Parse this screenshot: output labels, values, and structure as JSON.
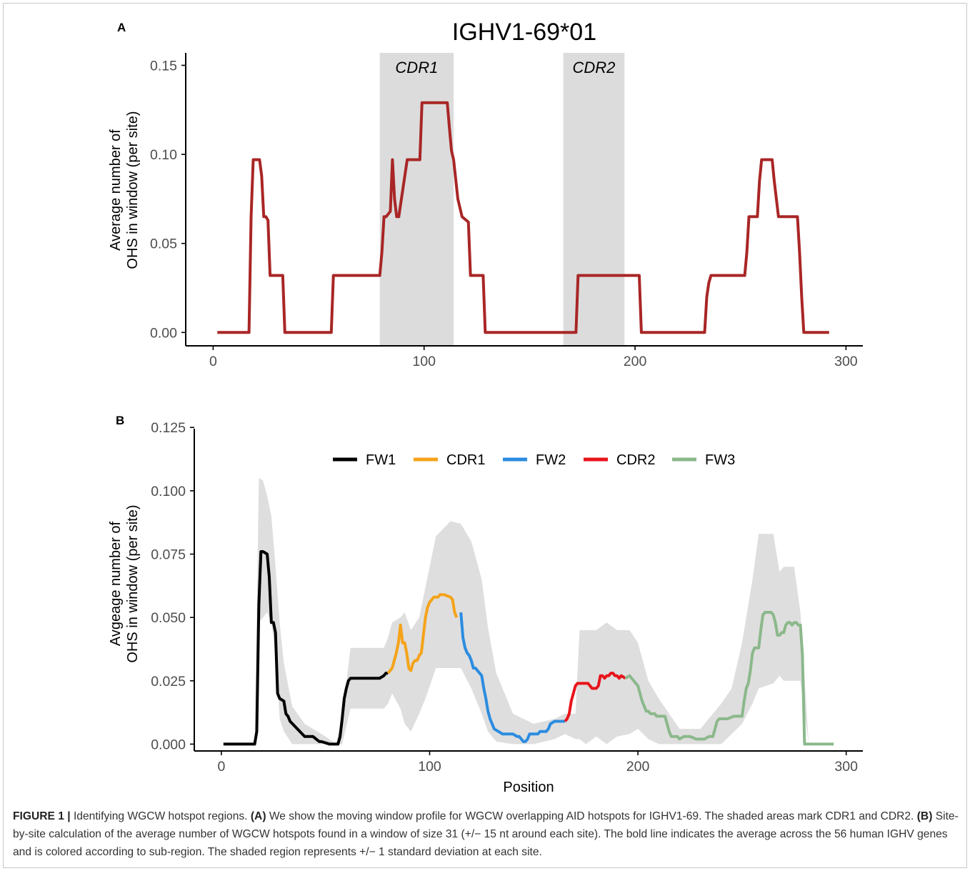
{
  "colors": {
    "panel_a_line": "#a92626",
    "cdr_shade": "#dcdcdc",
    "sd_band": "#dedede",
    "FW1": "#000000",
    "CDR1": "#f5a31a",
    "FW2": "#2b8ce0",
    "CDR2": "#e8141b",
    "FW3": "#8bb88b",
    "axis": "#000000",
    "tick_label": "#4d4d4d"
  },
  "chart_data": [
    {
      "panel_label": "A",
      "type": "line",
      "title": "IGHV1-69*01",
      "xlabel": "",
      "ylabel": [
        "Average number of",
        "OHS in window (per site)"
      ],
      "xlim": [
        -13,
        308
      ],
      "ylim": [
        -0.0075,
        0.157
      ],
      "xticks": [
        0,
        100,
        200,
        300
      ],
      "yticks": [
        0.0,
        0.05,
        0.1,
        0.15
      ],
      "ytick_labels": [
        "0.00",
        "0.05",
        "0.10",
        "0.15"
      ],
      "grid": false,
      "shaded_regions": [
        {
          "label": "CDR1",
          "x": [
            79,
            114
          ]
        },
        {
          "label": "CDR2",
          "x": [
            166,
            195
          ]
        }
      ],
      "series": [
        {
          "x": [
            2,
            17,
            18,
            19,
            22,
            23,
            24,
            25,
            26,
            27,
            33,
            34,
            56,
            57,
            78,
            79,
            80,
            81,
            82,
            84,
            85,
            86,
            87,
            88,
            92,
            98,
            99,
            110,
            111,
            112,
            113,
            114,
            116,
            118,
            121,
            122,
            128,
            129,
            163,
            164,
            172,
            173,
            202,
            203,
            233,
            234,
            235,
            236,
            240,
            252,
            253,
            254,
            256,
            258,
            259,
            260,
            262,
            263,
            265,
            266,
            268,
            277,
            278,
            279,
            280,
            292
          ],
          "y": [
            0.0,
            0.0,
            0.065,
            0.097,
            0.097,
            0.088,
            0.065,
            0.065,
            0.063,
            0.032,
            0.032,
            0.0,
            0.0,
            0.032,
            0.032,
            0.032,
            0.045,
            0.065,
            0.065,
            0.068,
            0.097,
            0.075,
            0.065,
            0.065,
            0.097,
            0.097,
            0.129,
            0.129,
            0.129,
            0.115,
            0.102,
            0.097,
            0.075,
            0.065,
            0.062,
            0.032,
            0.032,
            0.0,
            0.0,
            0.0,
            0.0,
            0.032,
            0.032,
            0.0,
            0.0,
            0.02,
            0.028,
            0.032,
            0.032,
            0.032,
            0.045,
            0.065,
            0.065,
            0.065,
            0.085,
            0.097,
            0.097,
            0.097,
            0.097,
            0.085,
            0.065,
            0.065,
            0.045,
            0.02,
            0.0,
            0.0
          ]
        }
      ]
    },
    {
      "panel_label": "B",
      "type": "line",
      "title": "",
      "xlabel": "Position",
      "ylabel": [
        "Avgeage number of",
        "OHS in window (per site)"
      ],
      "xlim": [
        -13,
        308
      ],
      "ylim": [
        -0.0027,
        0.1245
      ],
      "xticks": [
        0,
        100,
        200,
        300
      ],
      "yticks": [
        0.0,
        0.025,
        0.05,
        0.075,
        0.1,
        0.125
      ],
      "ytick_labels": [
        "0.000",
        "0.025",
        "0.050",
        "0.075",
        "0.100",
        "0.125"
      ],
      "grid": false,
      "legend_position": "top",
      "sd_band": {
        "x": [
          1,
          16,
          18,
          20,
          22,
          24,
          26,
          28,
          30,
          34,
          40,
          50,
          55,
          58,
          62,
          70,
          78,
          80,
          82,
          86,
          88,
          91,
          95,
          98,
          103,
          110,
          115,
          120,
          125,
          128,
          132,
          140,
          150,
          160,
          165,
          170,
          172,
          175,
          180,
          185,
          190,
          196,
          200,
          205,
          210,
          220,
          230,
          240,
          245,
          250,
          255,
          258,
          265,
          268,
          270,
          275,
          278,
          282,
          294
        ],
        "upper": [
          0.0,
          0.0,
          0.105,
          0.104,
          0.098,
          0.09,
          0.07,
          0.048,
          0.032,
          0.015,
          0.008,
          0.003,
          0.0,
          0.01,
          0.038,
          0.038,
          0.038,
          0.042,
          0.048,
          0.05,
          0.052,
          0.045,
          0.05,
          0.062,
          0.082,
          0.088,
          0.087,
          0.08,
          0.065,
          0.046,
          0.028,
          0.012,
          0.008,
          0.01,
          0.012,
          0.012,
          0.045,
          0.045,
          0.045,
          0.048,
          0.045,
          0.045,
          0.04,
          0.025,
          0.018,
          0.006,
          0.006,
          0.016,
          0.022,
          0.04,
          0.065,
          0.083,
          0.083,
          0.068,
          0.07,
          0.07,
          0.052,
          0.0,
          0.0
        ],
        "lower": [
          0.0,
          0.0,
          0.048,
          0.05,
          0.052,
          0.048,
          0.035,
          0.01,
          0.005,
          0.0,
          0.0,
          0.0,
          0.0,
          0.0,
          0.014,
          0.014,
          0.014,
          0.016,
          0.02,
          0.014,
          0.008,
          0.005,
          0.012,
          0.018,
          0.03,
          0.03,
          0.03,
          0.022,
          0.012,
          0.005,
          0.001,
          0.0,
          0.0,
          0.002,
          0.004,
          0.002,
          0.002,
          0.0,
          0.003,
          0.0,
          0.003,
          0.004,
          0.006,
          0.002,
          0.0,
          0.0,
          0.0,
          0.0,
          0.004,
          0.008,
          0.016,
          0.022,
          0.024,
          0.027,
          0.025,
          0.025,
          0.025,
          0.0,
          0.0
        ]
      },
      "series": [
        {
          "name": "FW1",
          "x": [
            1,
            16,
            17,
            18,
            19,
            20,
            22,
            23,
            24,
            25,
            26,
            27,
            28,
            30,
            31,
            32,
            33,
            40,
            43,
            44,
            47,
            48,
            52,
            55,
            56,
            57,
            58,
            59,
            60,
            61,
            62,
            63,
            75,
            76,
            78,
            79,
            80
          ],
          "y": [
            0.0,
            0.0,
            0.005,
            0.055,
            0.076,
            0.076,
            0.075,
            0.066,
            0.048,
            0.048,
            0.044,
            0.02,
            0.018,
            0.017,
            0.012,
            0.011,
            0.009,
            0.003,
            0.003,
            0.003,
            0.001,
            0.001,
            0.0,
            0.0,
            0.0,
            0.003,
            0.01,
            0.018,
            0.022,
            0.025,
            0.026,
            0.026,
            0.026,
            0.026,
            0.027,
            0.028,
            0.028
          ]
        },
        {
          "name": "CDR1",
          "x": [
            80,
            81,
            82,
            84,
            85,
            86,
            87,
            88,
            89,
            90,
            91,
            92,
            93,
            94,
            95,
            96,
            97,
            98,
            99,
            100,
            101,
            102,
            103,
            104,
            105,
            107,
            110,
            111,
            112,
            113
          ],
          "y": [
            0.028,
            0.029,
            0.03,
            0.036,
            0.04,
            0.047,
            0.04,
            0.04,
            0.036,
            0.03,
            0.029,
            0.032,
            0.033,
            0.033,
            0.035,
            0.036,
            0.043,
            0.05,
            0.054,
            0.056,
            0.057,
            0.058,
            0.058,
            0.058,
            0.059,
            0.059,
            0.058,
            0.057,
            0.052,
            0.05
          ]
        },
        {
          "name": "FW2",
          "x": [
            115,
            116,
            117,
            118,
            119,
            120,
            121,
            122,
            123,
            124,
            125,
            126,
            127,
            128,
            129,
            130,
            131,
            133,
            135,
            136,
            137,
            140,
            142,
            143,
            145,
            146,
            147,
            148,
            150,
            152,
            153,
            154,
            156,
            157,
            158,
            160,
            162,
            163,
            165
          ],
          "y": [
            0.052,
            0.042,
            0.038,
            0.036,
            0.035,
            0.033,
            0.03,
            0.03,
            0.029,
            0.028,
            0.027,
            0.022,
            0.018,
            0.013,
            0.01,
            0.008,
            0.006,
            0.005,
            0.004,
            0.004,
            0.004,
            0.004,
            0.003,
            0.003,
            0.001,
            0.001,
            0.002,
            0.004,
            0.004,
            0.004,
            0.005,
            0.005,
            0.005,
            0.006,
            0.008,
            0.009,
            0.009,
            0.009,
            0.009
          ]
        },
        {
          "name": "CDR2",
          "x": [
            165,
            166,
            167,
            168,
            169,
            170,
            171,
            172,
            173,
            174,
            176,
            177,
            178,
            180,
            181,
            182,
            183,
            184,
            185,
            186,
            187,
            188,
            189,
            190,
            191,
            192,
            194
          ],
          "y": [
            0.009,
            0.01,
            0.012,
            0.017,
            0.02,
            0.023,
            0.024,
            0.024,
            0.024,
            0.024,
            0.024,
            0.023,
            0.022,
            0.022,
            0.023,
            0.027,
            0.027,
            0.026,
            0.027,
            0.027,
            0.028,
            0.028,
            0.027,
            0.027,
            0.026,
            0.027,
            0.026
          ]
        },
        {
          "name": "FW3",
          "x": [
            194,
            196,
            197,
            198,
            199,
            200,
            201,
            202,
            203,
            204,
            205,
            206,
            208,
            209,
            210,
            213,
            214,
            215,
            216,
            217,
            219,
            220,
            222,
            225,
            228,
            230,
            232,
            234,
            236,
            237,
            238,
            239,
            240,
            241,
            243,
            246,
            247,
            248,
            249,
            250,
            251,
            252,
            253,
            254,
            255,
            256,
            257,
            258,
            259,
            260,
            261,
            262,
            263,
            264,
            265,
            266,
            267,
            268,
            269,
            270,
            271,
            272,
            273,
            274,
            275,
            276,
            277,
            278,
            279,
            280,
            294
          ],
          "y": [
            0.026,
            0.027,
            0.026,
            0.025,
            0.024,
            0.023,
            0.02,
            0.017,
            0.015,
            0.013,
            0.013,
            0.012,
            0.012,
            0.011,
            0.011,
            0.011,
            0.008,
            0.005,
            0.003,
            0.003,
            0.003,
            0.002,
            0.003,
            0.003,
            0.002,
            0.002,
            0.002,
            0.003,
            0.003,
            0.006,
            0.009,
            0.01,
            0.01,
            0.01,
            0.01,
            0.011,
            0.011,
            0.011,
            0.011,
            0.011,
            0.017,
            0.022,
            0.024,
            0.029,
            0.036,
            0.038,
            0.038,
            0.038,
            0.045,
            0.051,
            0.052,
            0.052,
            0.052,
            0.052,
            0.051,
            0.048,
            0.043,
            0.043,
            0.044,
            0.044,
            0.047,
            0.048,
            0.048,
            0.047,
            0.048,
            0.048,
            0.047,
            0.047,
            0.035,
            0.0,
            0.0
          ]
        }
      ]
    }
  ],
  "caption": {
    "figure_label": "FIGURE 1 |",
    "figure_title": "Identifying WGCW hotspot regions.",
    "a_label": "(A)",
    "a_text": "We show the moving window profile for WGCW overlapping AID hotspots for IGHV1-69. The shaded areas mark CDR1 and CDR2.",
    "b_label": "(B)",
    "b_text": "Site-by-site calculation of the average number of WGCW hotspots found in a window of size 31 (+/− 15 nt around each site). The bold line indicates the average across the 56 human IGHV genes and is colored according to sub-region. The shaded region represents +/− 1 standard deviation at each site."
  }
}
